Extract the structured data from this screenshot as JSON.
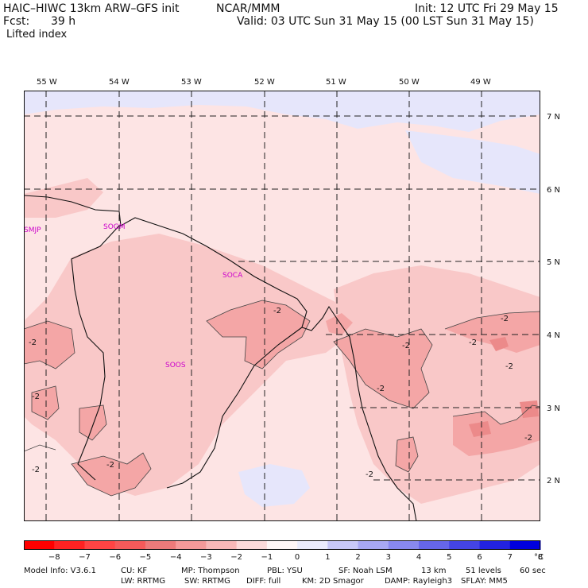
{
  "header": {
    "model": "HAIC–HIWC 13km ARW–GFS init",
    "center": "NCAR/MMM",
    "init": "Init: 12 UTC Fri 29 May 15",
    "fcst_label": "Fcst:",
    "fcst_value": "39 h",
    "valid": "Valid: 03 UTC Sun 31 May 15 (00 LST Sun 31 May 15)",
    "variable": "Lifted index"
  },
  "map": {
    "lon_labels": [
      "55 W",
      "54 W",
      "53 W",
      "52 W",
      "51 W",
      "50 W",
      "49 W"
    ],
    "lat_labels": [
      "7 N",
      "6 N",
      "5 N",
      "4 N",
      "3 N",
      "2 N"
    ],
    "stations": [
      "SMJP",
      "SOGM",
      "SOCA",
      "SOOS"
    ],
    "contour_labels": [
      "-2",
      "-2",
      "-2",
      "-2",
      "-2",
      "-2",
      "-2",
      "-2",
      "-2",
      "-2",
      "-2",
      "-2"
    ],
    "colors": {
      "neg1": "#fde4e4",
      "neg2": "#f9c8c8",
      "neg3": "#f4a6a6",
      "neg4": "#ec8a8a",
      "pos1": "#e6e6fb",
      "pos2": "#c8c8f7",
      "pos3": "#a6a6f1"
    }
  },
  "colorbar": {
    "ticks": [
      "−8",
      "−7",
      "−6",
      "−5",
      "−4",
      "−3",
      "−2",
      "−1",
      "0",
      "1",
      "2",
      "3",
      "4",
      "5",
      "6",
      "7",
      "8"
    ],
    "unit": "°C",
    "colors": [
      "#ff0000",
      "#ff2222",
      "#ff4444",
      "#f45a5a",
      "#ec7a7a",
      "#f49a9a",
      "#f8b8b8",
      "#fcdada",
      "#fff6f6",
      "#ececfc",
      "#c8c8f7",
      "#a8a8f2",
      "#8888ee",
      "#6666ea",
      "#4444e4",
      "#2222e0",
      "#0000dd"
    ]
  },
  "footer": {
    "line1": [
      "Model Info: V3.6.1",
      "CU: KF",
      "MP: Thompson",
      "PBL: YSU",
      "SF: Noah LSM",
      "13 km",
      "51 levels",
      "60 sec"
    ],
    "line2": [
      "LW: RRTMG",
      "SW: RRTMG",
      "DIFF: full",
      "KM: 2D Smagor",
      "DAMP: Rayleigh3",
      "SFLAY: MM5"
    ]
  }
}
